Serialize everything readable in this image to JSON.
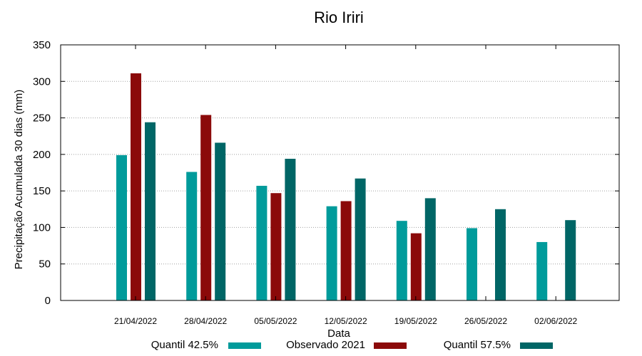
{
  "chart_data": {
    "type": "bar",
    "title": "Rio Iriri",
    "xlabel": "Data",
    "ylabel": "Precipitação Acumulada 30 dias (mm)",
    "ylim": [
      0,
      350
    ],
    "yticks": [
      "0",
      "50",
      "100",
      "150",
      "200",
      "250",
      "300",
      "350"
    ],
    "grid": true,
    "legend_position": "bottom",
    "categories": [
      "21/04/2022",
      "28/04/2022",
      "05/05/2022",
      "12/05/2022",
      "19/05/2022",
      "26/05/2022",
      "02/06/2022"
    ],
    "series": [
      {
        "name": "Quantil 42.5%",
        "color": "#009b9b",
        "values": [
          199,
          176,
          157,
          129,
          109,
          99,
          80
        ]
      },
      {
        "name": "Observado 2021",
        "color": "#8b0a0a",
        "values": [
          311,
          254,
          147,
          136,
          92,
          null,
          null
        ]
      },
      {
        "name": "Quantil 57.5%",
        "color": "#006666",
        "values": [
          244,
          216,
          194,
          167,
          140,
          125,
          110
        ]
      }
    ]
  }
}
